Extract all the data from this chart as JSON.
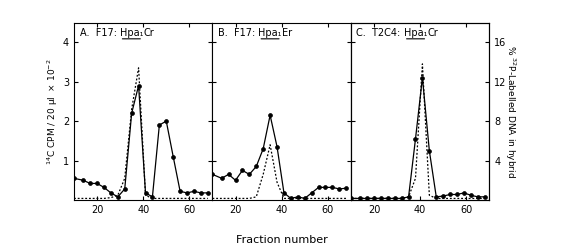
{
  "title_A": "A.  F17: Hpa₁Cr",
  "title_B": "B.  F17: Hpa₁Er",
  "title_C": "C.  T2C4: Hpa₁Cr",
  "xlabel": "Fraction number",
  "ylabel_left": "$^{14}$C CPM / 20 μl  × 10$^{-2}$",
  "ylabel_right": "% $^{32}$P-Labelled DNA in hybrid",
  "ylim": [
    0,
    4.5
  ],
  "yticks": [
    1,
    2,
    3,
    4
  ],
  "right_yticks_pos": [
    1.0,
    2.0,
    3.0,
    4.0
  ],
  "right_ytick_labels": [
    "4",
    "8",
    "12",
    "16"
  ],
  "xticks": [
    20,
    40,
    60
  ],
  "panels": {
    "A": {
      "solid_x": [
        10,
        14,
        17,
        20,
        23,
        26,
        29,
        32,
        35,
        38,
        41,
        44,
        47,
        50,
        53,
        56,
        59,
        62,
        65,
        68
      ],
      "solid_y": [
        0.55,
        0.5,
        0.42,
        0.42,
        0.32,
        0.18,
        0.08,
        0.28,
        2.2,
        2.9,
        0.18,
        0.08,
        1.9,
        2.0,
        1.1,
        0.22,
        0.18,
        0.22,
        0.18,
        0.18
      ],
      "dotted_x": [
        10,
        14,
        17,
        20,
        23,
        26,
        29,
        32,
        35,
        38,
        41,
        44,
        47,
        50,
        53,
        56,
        59,
        62,
        65,
        68
      ],
      "dotted_y": [
        0.04,
        0.04,
        0.04,
        0.04,
        0.04,
        0.06,
        0.12,
        0.55,
        2.3,
        3.35,
        0.12,
        0.04,
        0.04,
        0.04,
        0.04,
        0.04,
        0.04,
        0.04,
        0.04,
        0.04
      ]
    },
    "B": {
      "solid_x": [
        10,
        14,
        17,
        20,
        23,
        26,
        29,
        32,
        35,
        38,
        41,
        44,
        47,
        50,
        53,
        56,
        59,
        62,
        65,
        68
      ],
      "solid_y": [
        0.65,
        0.55,
        0.65,
        0.5,
        0.75,
        0.65,
        0.85,
        1.3,
        2.15,
        1.35,
        0.18,
        0.04,
        0.08,
        0.04,
        0.18,
        0.32,
        0.32,
        0.32,
        0.28,
        0.3
      ],
      "dotted_x": [
        10,
        14,
        17,
        20,
        23,
        26,
        29,
        32,
        35,
        38,
        41,
        44,
        47,
        50,
        53,
        56,
        59,
        62,
        65,
        68
      ],
      "dotted_y": [
        0.04,
        0.04,
        0.04,
        0.04,
        0.04,
        0.04,
        0.08,
        0.65,
        1.4,
        0.45,
        0.04,
        0.04,
        0.04,
        0.04,
        0.04,
        0.04,
        0.04,
        0.04,
        0.04,
        0.04
      ]
    },
    "C": {
      "solid_x": [
        10,
        14,
        17,
        20,
        23,
        26,
        29,
        32,
        35,
        38,
        41,
        44,
        47,
        50,
        53,
        56,
        59,
        62,
        65,
        68
      ],
      "solid_y": [
        0.04,
        0.04,
        0.04,
        0.04,
        0.04,
        0.04,
        0.04,
        0.04,
        0.08,
        1.55,
        3.1,
        1.25,
        0.08,
        0.1,
        0.14,
        0.14,
        0.18,
        0.12,
        0.08,
        0.08
      ],
      "dotted_x": [
        10,
        14,
        17,
        20,
        23,
        26,
        29,
        32,
        35,
        38,
        41,
        44,
        47,
        50,
        53,
        56,
        59,
        62,
        65,
        68
      ],
      "dotted_y": [
        0.04,
        0.04,
        0.04,
        0.04,
        0.04,
        0.04,
        0.04,
        0.04,
        0.08,
        0.55,
        3.45,
        0.12,
        0.04,
        0.04,
        0.04,
        0.04,
        0.04,
        0.04,
        0.04,
        0.04
      ]
    }
  },
  "bg_color": "#ffffff",
  "line_color": "#000000"
}
